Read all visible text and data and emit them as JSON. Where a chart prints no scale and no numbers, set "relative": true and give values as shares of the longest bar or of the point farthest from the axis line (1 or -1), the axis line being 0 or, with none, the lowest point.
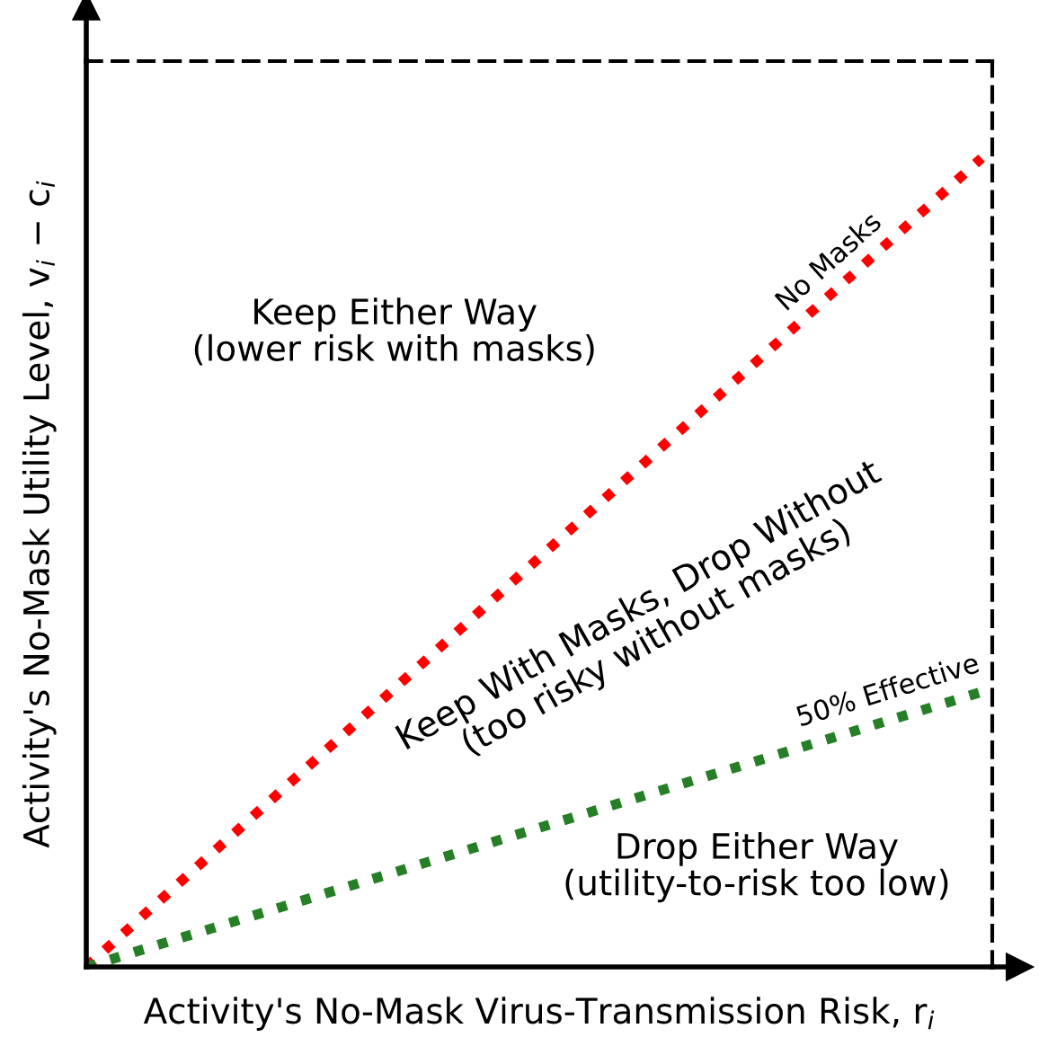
{
  "chart_data": {
    "type": "line",
    "relative": true,
    "xlabel": "Activity's No-Mask Virus-Transmission Risk, r$_{i}$",
    "ylabel": "Activity's No-Mask Utility Level, v$_{i}$ − c$_{i}$",
    "categories": [
      null,
      null
    ],
    "series": [
      {
        "name": "No Masks",
        "color": "#ff0000",
        "values": [
          0,
          1
        ]
      },
      {
        "name": "50% Effective",
        "color": "#267f26",
        "values": [
          0,
          0.34
        ]
      }
    ],
    "annotations": [
      "Keep Either Way\n(lower risk with masks)",
      "Keep With Masks, Drop Without\n(too risky without masks)",
      "Drop Either Way\n(utility-to-risk too low)"
    ],
    "line_style": "dotted",
    "marker": "none",
    "legend": false
  }
}
